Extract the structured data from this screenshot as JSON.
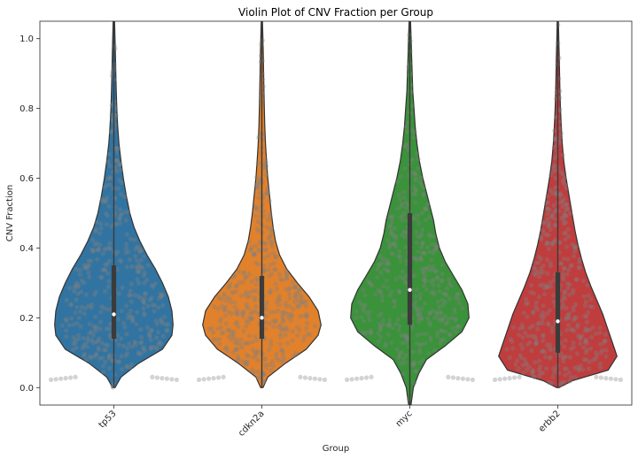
{
  "chart_data": {
    "type": "violin",
    "title": "Violin Plot of CNV Fraction per Group",
    "xlabel": "Group",
    "ylabel": "CNV Fraction",
    "ylim": [
      -0.05,
      1.05
    ],
    "y_ticks": [
      "0.0",
      "0.2",
      "0.4",
      "0.6",
      "0.8",
      "1.0"
    ],
    "x_tick_rotation_deg": 45,
    "grid": false,
    "legend": "none",
    "overlay": "swarm points (gray, semi-transparent)",
    "categories": [
      "tp53",
      "cdkn2a",
      "myc",
      "erbb2"
    ],
    "series": [
      {
        "category": "tp53",
        "color": "#3274a1",
        "range": [
          0.0,
          1.05
        ],
        "box": {
          "q1": 0.14,
          "median": 0.21,
          "q3": 0.35
        },
        "peak_value": 0.17,
        "density_profile": [
          [
            0.0,
            0.02
          ],
          [
            0.03,
            0.12
          ],
          [
            0.07,
            0.42
          ],
          [
            0.11,
            0.82
          ],
          [
            0.15,
            0.98
          ],
          [
            0.18,
            1.0
          ],
          [
            0.22,
            0.98
          ],
          [
            0.26,
            0.92
          ],
          [
            0.3,
            0.82
          ],
          [
            0.34,
            0.7
          ],
          [
            0.38,
            0.56
          ],
          [
            0.42,
            0.44
          ],
          [
            0.46,
            0.34
          ],
          [
            0.5,
            0.27
          ],
          [
            0.55,
            0.21
          ],
          [
            0.6,
            0.16
          ],
          [
            0.65,
            0.12
          ],
          [
            0.7,
            0.085
          ],
          [
            0.75,
            0.065
          ],
          [
            0.8,
            0.05
          ],
          [
            0.85,
            0.04
          ],
          [
            0.9,
            0.033
          ],
          [
            0.95,
            0.027
          ],
          [
            1.0,
            0.02
          ],
          [
            1.05,
            0.012
          ]
        ]
      },
      {
        "category": "cdkn2a",
        "color": "#e1812c",
        "range": [
          0.0,
          1.05
        ],
        "box": {
          "q1": 0.14,
          "median": 0.2,
          "q3": 0.32
        },
        "peak_value": 0.18,
        "density_profile": [
          [
            0.0,
            0.02
          ],
          [
            0.03,
            0.1
          ],
          [
            0.07,
            0.4
          ],
          [
            0.11,
            0.75
          ],
          [
            0.15,
            0.95
          ],
          [
            0.18,
            1.0
          ],
          [
            0.22,
            0.95
          ],
          [
            0.26,
            0.8
          ],
          [
            0.3,
            0.6
          ],
          [
            0.34,
            0.42
          ],
          [
            0.38,
            0.3
          ],
          [
            0.42,
            0.23
          ],
          [
            0.46,
            0.19
          ],
          [
            0.5,
            0.16
          ],
          [
            0.55,
            0.13
          ],
          [
            0.6,
            0.1
          ],
          [
            0.65,
            0.08
          ],
          [
            0.7,
            0.062
          ],
          [
            0.75,
            0.05
          ],
          [
            0.8,
            0.042
          ],
          [
            0.85,
            0.036
          ],
          [
            0.9,
            0.03
          ],
          [
            0.95,
            0.025
          ],
          [
            1.0,
            0.018
          ],
          [
            1.05,
            0.01
          ]
        ]
      },
      {
        "category": "myc",
        "color": "#3a923a",
        "range": [
          -0.05,
          1.05
        ],
        "box": {
          "q1": 0.18,
          "median": 0.28,
          "q3": 0.5
        },
        "peak_value": 0.2,
        "density_profile": [
          [
            -0.05,
            0.02
          ],
          [
            0.0,
            0.06
          ],
          [
            0.04,
            0.15
          ],
          [
            0.08,
            0.28
          ],
          [
            0.12,
            0.6
          ],
          [
            0.16,
            0.88
          ],
          [
            0.2,
            1.0
          ],
          [
            0.24,
            0.98
          ],
          [
            0.28,
            0.88
          ],
          [
            0.32,
            0.74
          ],
          [
            0.36,
            0.6
          ],
          [
            0.4,
            0.5
          ],
          [
            0.44,
            0.44
          ],
          [
            0.48,
            0.4
          ],
          [
            0.52,
            0.34
          ],
          [
            0.56,
            0.28
          ],
          [
            0.6,
            0.22
          ],
          [
            0.65,
            0.16
          ],
          [
            0.7,
            0.12
          ],
          [
            0.75,
            0.09
          ],
          [
            0.8,
            0.07
          ],
          [
            0.85,
            0.05
          ],
          [
            0.9,
            0.04
          ],
          [
            0.95,
            0.03
          ],
          [
            1.0,
            0.022
          ],
          [
            1.05,
            0.012
          ]
        ]
      },
      {
        "category": "erbb2",
        "color": "#c03d3e",
        "range": [
          0.0,
          1.05
        ],
        "box": {
          "q1": 0.1,
          "median": 0.19,
          "q3": 0.33
        },
        "peak_value": 0.09,
        "density_profile": [
          [
            0.0,
            0.02
          ],
          [
            0.02,
            0.25
          ],
          [
            0.05,
            0.85
          ],
          [
            0.09,
            1.0
          ],
          [
            0.13,
            0.92
          ],
          [
            0.17,
            0.84
          ],
          [
            0.21,
            0.76
          ],
          [
            0.25,
            0.66
          ],
          [
            0.29,
            0.56
          ],
          [
            0.33,
            0.47
          ],
          [
            0.37,
            0.4
          ],
          [
            0.41,
            0.34
          ],
          [
            0.45,
            0.29
          ],
          [
            0.5,
            0.24
          ],
          [
            0.55,
            0.19
          ],
          [
            0.6,
            0.14
          ],
          [
            0.65,
            0.1
          ],
          [
            0.7,
            0.075
          ],
          [
            0.75,
            0.058
          ],
          [
            0.8,
            0.045
          ],
          [
            0.85,
            0.036
          ],
          [
            0.9,
            0.03
          ],
          [
            0.95,
            0.024
          ],
          [
            1.0,
            0.017
          ],
          [
            1.05,
            0.01
          ]
        ]
      }
    ]
  }
}
